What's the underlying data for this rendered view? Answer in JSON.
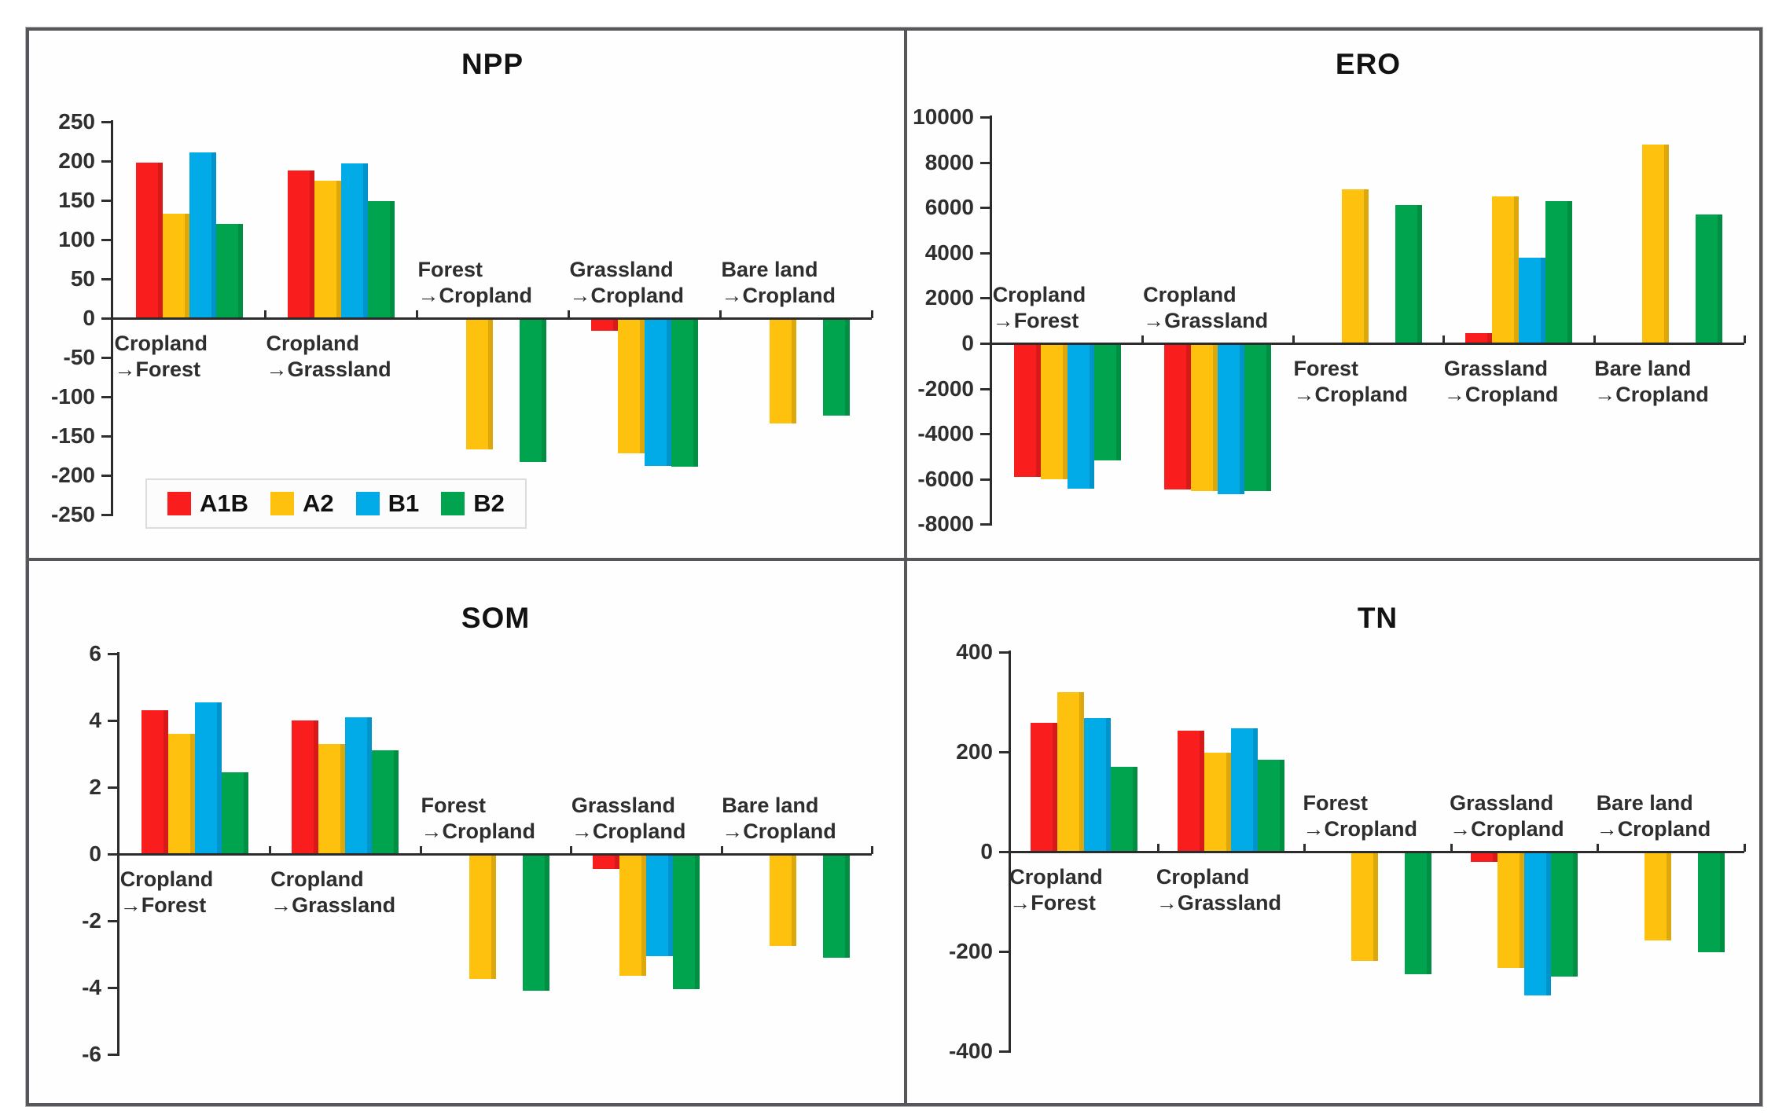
{
  "figure": {
    "background": "#ffffff",
    "frame_color": "#57575b"
  },
  "colors": {
    "A1B": "#f91d1d",
    "A2": "#fdc10e",
    "B1": "#00abe8",
    "B2": "#00a44e"
  },
  "legend": {
    "items": [
      "A1B",
      "A2",
      "B1",
      "B2"
    ]
  },
  "categories": [
    {
      "line1": "Cropland",
      "line2": "→Forest"
    },
    {
      "line1": "Cropland",
      "line2": "→Grassland"
    },
    {
      "line1": "Forest",
      "line2": "→Cropland"
    },
    {
      "line1": "Grassland",
      "line2": "→Cropland"
    },
    {
      "line1": "Bare land",
      "line2": "→Cropland"
    }
  ],
  "chart_data": [
    {
      "id": "npp",
      "type": "bar",
      "title": "NPP",
      "ylim": [
        -250,
        250
      ],
      "ytick": 50,
      "grid": false,
      "legend_position": "bottom-left-inside",
      "categories": [
        "Cropland→Forest",
        "Cropland→Grassland",
        "Forest→Cropland",
        "Grassland→Cropland",
        "Bare land→Cropland"
      ],
      "series": [
        {
          "name": "A1B",
          "values": [
            198,
            188,
            0,
            -14,
            0
          ]
        },
        {
          "name": "A2",
          "values": [
            133,
            175,
            -165,
            -170,
            -132
          ]
        },
        {
          "name": "B1",
          "values": [
            211,
            197,
            0,
            -186,
            0
          ]
        },
        {
          "name": "B2",
          "values": [
            120,
            149,
            -181,
            -187,
            -122
          ]
        }
      ]
    },
    {
      "id": "ero",
      "type": "bar",
      "title": "ERO",
      "ylim": [
        -8000,
        10000
      ],
      "ytick": 2000,
      "grid": false,
      "legend_position": "none",
      "categories": [
        "Cropland→Forest",
        "Cropland→Grassland",
        "Forest→Cropland",
        "Grassland→Cropland",
        "Bare land→Cropland"
      ],
      "series": [
        {
          "name": "A1B",
          "values": [
            -5850,
            -6400,
            0,
            450,
            0
          ]
        },
        {
          "name": "A2",
          "values": [
            -5950,
            -6450,
            6800,
            6500,
            8800
          ]
        },
        {
          "name": "B1",
          "values": [
            -6350,
            -6600,
            0,
            3800,
            0
          ]
        },
        {
          "name": "B2",
          "values": [
            -5100,
            -6450,
            6100,
            6300,
            5700
          ]
        }
      ]
    },
    {
      "id": "som",
      "type": "bar",
      "title": "SOM",
      "ylim": [
        -6,
        6
      ],
      "ytick": 2,
      "grid": false,
      "legend_position": "none",
      "categories": [
        "Cropland→Forest",
        "Cropland→Grassland",
        "Forest→Cropland",
        "Grassland→Cropland",
        "Bare land→Cropland"
      ],
      "series": [
        {
          "name": "A1B",
          "values": [
            4.3,
            4.0,
            0,
            -0.4,
            0
          ]
        },
        {
          "name": "A2",
          "values": [
            3.6,
            3.3,
            -3.7,
            -3.6,
            -2.7
          ]
        },
        {
          "name": "B1",
          "values": [
            4.55,
            4.1,
            0,
            -3.0,
            0
          ]
        },
        {
          "name": "B2",
          "values": [
            2.45,
            3.1,
            -4.05,
            -4.0,
            -3.05
          ]
        }
      ]
    },
    {
      "id": "tn",
      "type": "bar",
      "title": "TN",
      "ylim": [
        -400,
        400
      ],
      "ytick": 200,
      "grid": false,
      "legend_position": "none",
      "categories": [
        "Cropland→Forest",
        "Cropland→Grassland",
        "Forest→Cropland",
        "Grassland→Cropland",
        "Bare land→Cropland"
      ],
      "series": [
        {
          "name": "A1B",
          "values": [
            258,
            242,
            0,
            -18,
            0
          ]
        },
        {
          "name": "A2",
          "values": [
            320,
            198,
            -215,
            -230,
            -175
          ]
        },
        {
          "name": "B1",
          "values": [
            268,
            248,
            0,
            -285,
            0
          ]
        },
        {
          "name": "B2",
          "values": [
            170,
            184,
            -242,
            -248,
            -198
          ]
        }
      ]
    }
  ]
}
